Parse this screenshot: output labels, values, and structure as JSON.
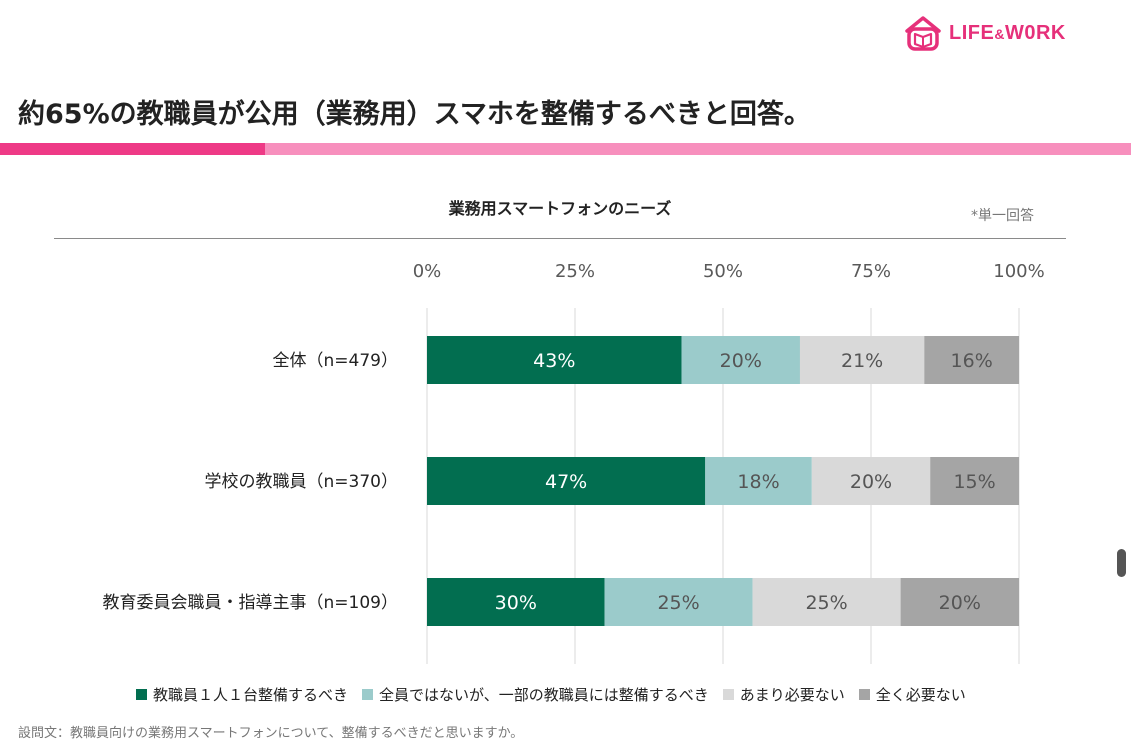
{
  "brand": {
    "logo_text": "LIFE",
    "logo_amp": "&",
    "logo_text_2": "W0RK",
    "color": "#e6307a"
  },
  "headline": "約65%の教職員が公用（業務用）スマホを整備するべきと回答。",
  "note": "*単一回答",
  "footnote": "設問文：教職員向けの業務用スマートフォンについて、整備するべきだと思いますか。",
  "chart_data": {
    "type": "bar",
    "orientation": "horizontal",
    "stacked": true,
    "title": "業務用スマートフォンのニーズ",
    "x_ticks": [
      "0%",
      "25%",
      "50%",
      "75%",
      "100%"
    ],
    "xlim": [
      0,
      100
    ],
    "grid": true,
    "legend_position": "bottom",
    "categories": [
      "全体（n=479）",
      "学校の教職員（n=370）",
      "教育委員会職員・指導主事（n=109）"
    ],
    "series": [
      {
        "name": "教職員１人１台整備するべき",
        "values": [
          43,
          47,
          30
        ],
        "labels": [
          "43%",
          "47%",
          "30%"
        ],
        "color": "#026e50",
        "text_color": "#ffffff"
      },
      {
        "name": "全員ではないが、一部の教職員には整備するべき",
        "values": [
          20,
          18,
          25
        ],
        "labels": [
          "20%",
          "18%",
          "25%"
        ],
        "color": "#9bcbcb",
        "text_color": "#555555"
      },
      {
        "name": "あまり必要ない",
        "values": [
          21,
          20,
          25
        ],
        "labels": [
          "21%",
          "20%",
          "25%"
        ],
        "color": "#d9d9d9",
        "text_color": "#555555"
      },
      {
        "name": "全く必要ない",
        "values": [
          16,
          15,
          20
        ],
        "labels": [
          "16%",
          "15%",
          "20%"
        ],
        "color": "#a5a5a5",
        "text_color": "#555555"
      }
    ]
  }
}
